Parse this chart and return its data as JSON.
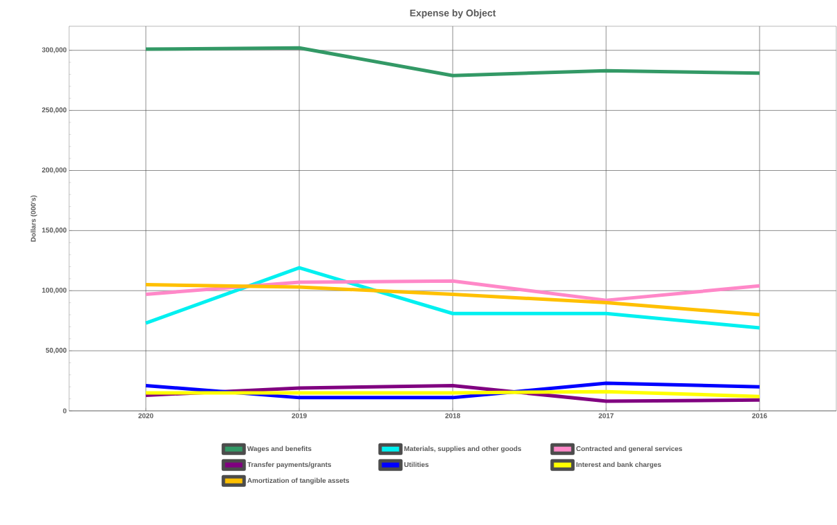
{
  "chart_data": {
    "type": "line",
    "title": "Expense by Object",
    "ylabel": "Dollars (000's)",
    "categories": [
      "2020",
      "2019",
      "2018",
      "2017",
      "2016"
    ],
    "series": [
      {
        "name": "Wages and benefits",
        "color": "#339966",
        "values": [
          301000,
          302000,
          279000,
          283000,
          281000
        ]
      },
      {
        "name": "Materials, supplies and other goods",
        "color": "#00f0f0",
        "values": [
          73000,
          119000,
          81000,
          81000,
          69000
        ]
      },
      {
        "name": "Contracted and general services",
        "color": "#ff88c8",
        "values": [
          97000,
          107000,
          108000,
          92000,
          104000
        ]
      },
      {
        "name": "Transfer payments/grants",
        "color": "#800080",
        "values": [
          13000,
          19000,
          21000,
          8000,
          9000
        ]
      },
      {
        "name": "Utilities",
        "color": "#0000ff",
        "values": [
          21000,
          11000,
          11000,
          23000,
          20000
        ]
      },
      {
        "name": "Interest and bank charges",
        "color": "#ffff00",
        "values": [
          15000,
          15000,
          15000,
          16000,
          12000
        ]
      },
      {
        "name": "Amortization of tangible assets",
        "color": "#ffc000",
        "values": [
          105000,
          103000,
          97000,
          90000,
          80000
        ]
      }
    ],
    "ylim": [
      0,
      320000
    ],
    "yticks": [
      {
        "value": 0,
        "label": "0"
      },
      {
        "value": 50000,
        "label": "50,000"
      },
      {
        "value": 100000,
        "label": "100,000"
      },
      {
        "value": 150000,
        "label": "150,000"
      },
      {
        "value": 200000,
        "label": "200,000"
      },
      {
        "value": 250000,
        "label": "250,000"
      },
      {
        "value": 300000,
        "label": "300,000"
      }
    ],
    "grid": true,
    "legend": "bottom",
    "marker": "none",
    "line_style": "solid"
  }
}
